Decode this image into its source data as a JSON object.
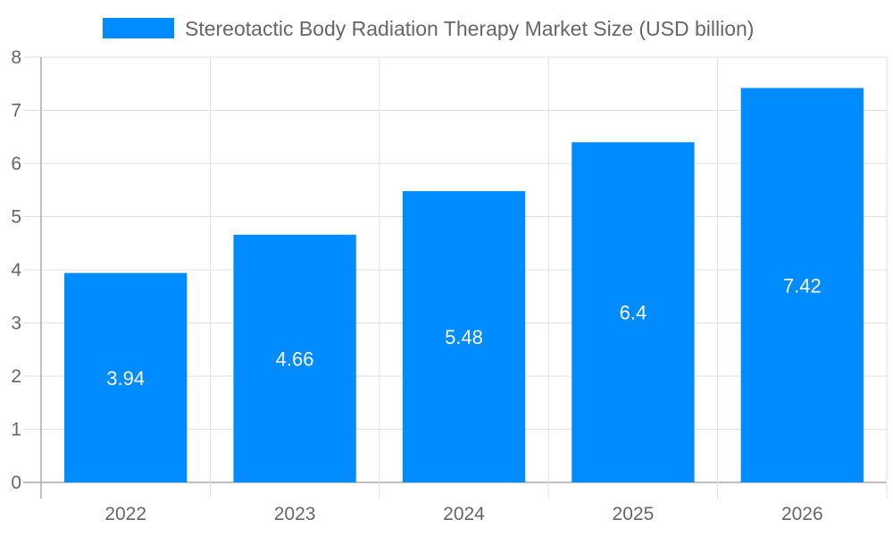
{
  "chart_data": {
    "type": "bar",
    "categories": [
      "2022",
      "2023",
      "2024",
      "2025",
      "2026"
    ],
    "series": [
      {
        "name": "Stereotactic Body Radiation Therapy Market Size (USD billion)",
        "values": [
          3.94,
          4.66,
          5.48,
          6.4,
          7.42
        ]
      }
    ],
    "data_labels": [
      "3.94",
      "4.66",
      "5.48",
      "6.4",
      "7.42"
    ],
    "ylim": [
      0,
      8
    ],
    "yticks": [
      "0",
      "1",
      "2",
      "3",
      "4",
      "5",
      "6",
      "7",
      "8"
    ],
    "grid": true,
    "legend_position": "top",
    "bar_color": "#008CFF",
    "title": "",
    "xlabel": "",
    "ylabel": ""
  }
}
